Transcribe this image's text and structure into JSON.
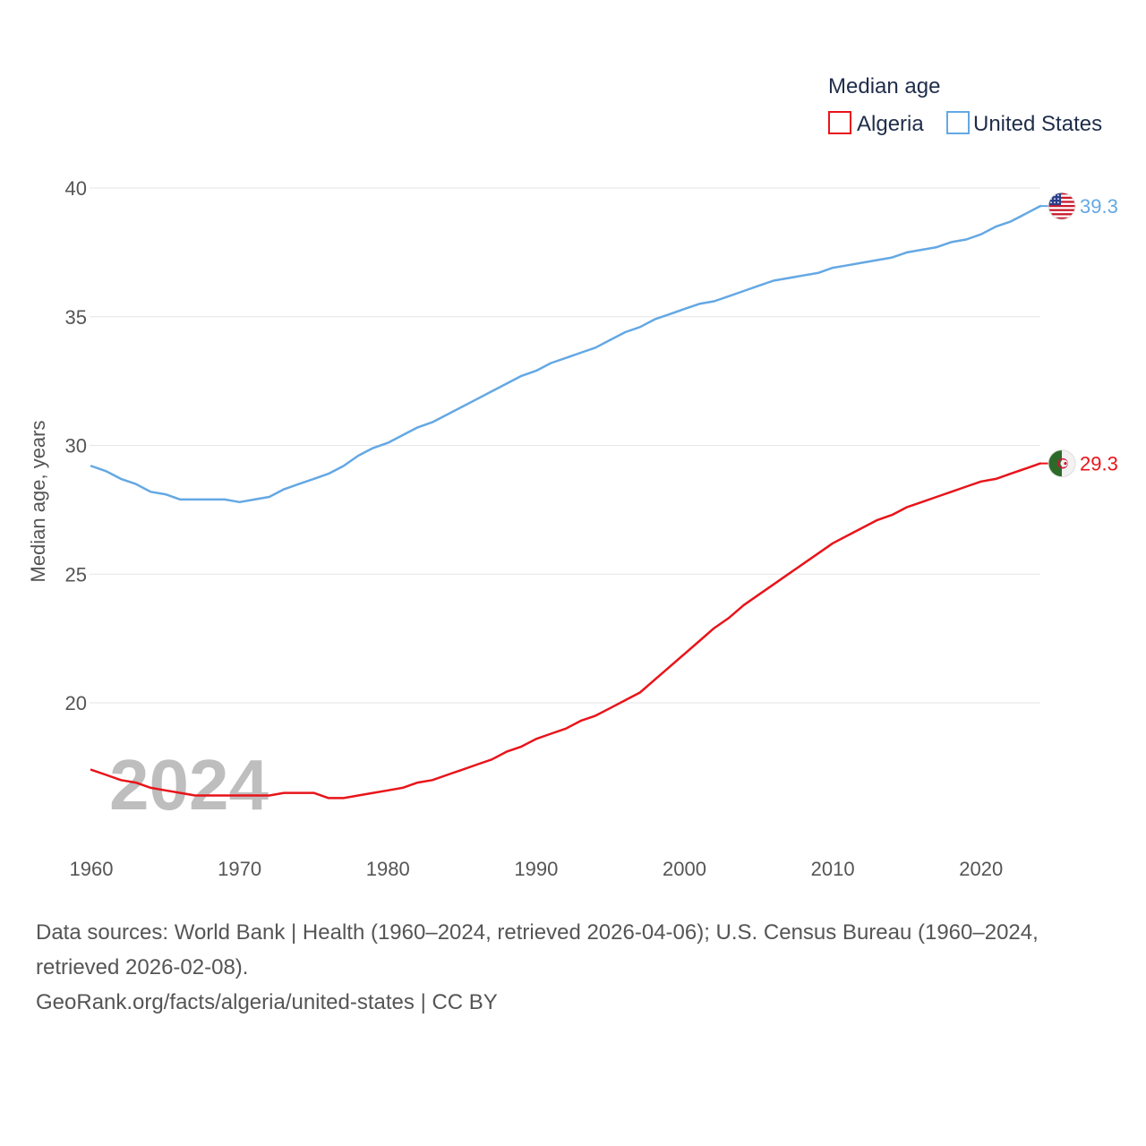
{
  "chart_data": {
    "type": "line",
    "legend_title": "Median age",
    "ylabel": "Median age, years",
    "xlabel": "",
    "ylim": [
      15.5,
      40
    ],
    "xlim": [
      1960,
      2024
    ],
    "y_ticks": [
      20,
      25,
      30,
      35,
      40
    ],
    "x_ticks": [
      1960,
      1970,
      1980,
      1990,
      2000,
      2010,
      2020
    ],
    "year_watermark": "2024",
    "legend_position": "top-right",
    "grid": true,
    "x": [
      1960,
      1961,
      1962,
      1963,
      1964,
      1965,
      1966,
      1967,
      1968,
      1969,
      1970,
      1971,
      1972,
      1973,
      1974,
      1975,
      1976,
      1977,
      1978,
      1979,
      1980,
      1981,
      1982,
      1983,
      1984,
      1985,
      1986,
      1987,
      1988,
      1989,
      1990,
      1991,
      1992,
      1993,
      1994,
      1995,
      1996,
      1997,
      1998,
      1999,
      2000,
      2001,
      2002,
      2003,
      2004,
      2005,
      2006,
      2007,
      2008,
      2009,
      2010,
      2011,
      2012,
      2013,
      2014,
      2015,
      2016,
      2017,
      2018,
      2019,
      2020,
      2021,
      2022,
      2023,
      2024
    ],
    "series": [
      {
        "name": "Algeria",
        "color": "#e8141a",
        "end_label": "29.3",
        "flag_icon": "algeria-flag-icon",
        "values": [
          17.4,
          17.2,
          17.0,
          16.9,
          16.7,
          16.6,
          16.5,
          16.4,
          16.4,
          16.4,
          16.4,
          16.4,
          16.4,
          16.5,
          16.5,
          16.5,
          16.3,
          16.3,
          16.4,
          16.5,
          16.6,
          16.7,
          16.9,
          17.0,
          17.2,
          17.4,
          17.6,
          17.8,
          18.1,
          18.3,
          18.6,
          18.8,
          19.0,
          19.3,
          19.5,
          19.8,
          20.1,
          20.4,
          20.9,
          21.4,
          21.9,
          22.4,
          22.9,
          23.3,
          23.8,
          24.2,
          24.6,
          25.0,
          25.4,
          25.8,
          26.2,
          26.5,
          26.8,
          27.1,
          27.3,
          27.6,
          27.8,
          28.0,
          28.2,
          28.4,
          28.6,
          28.7,
          28.9,
          29.1,
          29.3
        ]
      },
      {
        "name": "United States",
        "color": "#64a8e4",
        "end_label": "39.3",
        "flag_icon": "united-states-flag-icon",
        "values": [
          29.2,
          29.0,
          28.7,
          28.5,
          28.2,
          28.1,
          27.9,
          27.9,
          27.9,
          27.9,
          27.8,
          27.9,
          28.0,
          28.3,
          28.5,
          28.7,
          28.9,
          29.2,
          29.6,
          29.9,
          30.1,
          30.4,
          30.7,
          30.9,
          31.2,
          31.5,
          31.8,
          32.1,
          32.4,
          32.7,
          32.9,
          33.2,
          33.4,
          33.6,
          33.8,
          34.1,
          34.4,
          34.6,
          34.9,
          35.1,
          35.3,
          35.5,
          35.6,
          35.8,
          36.0,
          36.2,
          36.4,
          36.5,
          36.6,
          36.7,
          36.9,
          37.0,
          37.1,
          37.2,
          37.3,
          37.5,
          37.6,
          37.7,
          37.9,
          38.0,
          38.2,
          38.5,
          38.7,
          39.0,
          39.3
        ]
      }
    ]
  },
  "footer": {
    "sources_line": "Data sources: World Bank | Health (1960–2024, retrieved 2026-04-06); U.S. Census Bureau (1960–2024, retrieved 2026-02-08).",
    "credit_line": "GeoRank.org/facts/algeria/united-states | CC BY"
  }
}
